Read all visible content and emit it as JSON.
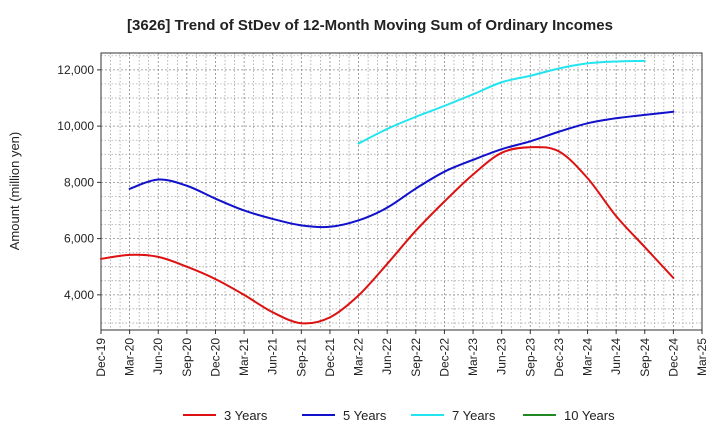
{
  "chart_data": {
    "type": "line",
    "title": "[3626]  Trend of StDev of 12-Month Moving Sum of Ordinary Incomes",
    "ylabel": "Amount (million yen)",
    "xlabel": "",
    "x_ticks": [
      "Dec-19",
      "Mar-20",
      "Jun-20",
      "Sep-20",
      "Dec-20",
      "Mar-21",
      "Jun-21",
      "Sep-21",
      "Dec-21",
      "Mar-22",
      "Jun-22",
      "Sep-22",
      "Dec-22",
      "Mar-23",
      "Jun-23",
      "Sep-23",
      "Dec-23",
      "Mar-24",
      "Jun-24",
      "Sep-24",
      "Dec-24",
      "Mar-25"
    ],
    "y_ticks": [
      "4,000",
      "6,000",
      "8,000",
      "10,000",
      "12,000"
    ],
    "y_tick_values": [
      4000,
      6000,
      8000,
      10000,
      12000
    ],
    "ylim": [
      2750,
      12600
    ],
    "grid": true,
    "legend_position": "bottom",
    "series": [
      {
        "name": "3 Years",
        "color": "#dd1111",
        "start_index": 0,
        "values": [
          5280,
          5420,
          5350,
          5000,
          4560,
          4000,
          3380,
          2990,
          3200,
          3980,
          5100,
          6280,
          7320,
          8280,
          9050,
          9250,
          9100,
          8150,
          6800,
          5700,
          4600
        ]
      },
      {
        "name": "5 Years",
        "color": "#1111cc",
        "start_index": 1,
        "values": [
          7770,
          8100,
          7880,
          7420,
          7000,
          6700,
          6470,
          6420,
          6650,
          7100,
          7780,
          8380,
          8800,
          9180,
          9460,
          9800,
          10100,
          10280,
          10400,
          10510
        ]
      },
      {
        "name": "7 Years",
        "color": "#22e5f0",
        "start_index": 9,
        "values": [
          9380,
          9900,
          10330,
          10720,
          11130,
          11560,
          11790,
          12050,
          12230,
          12300,
          12320
        ]
      },
      {
        "name": "10 Years",
        "color": "#228822",
        "start_index": 0,
        "values": []
      }
    ]
  }
}
